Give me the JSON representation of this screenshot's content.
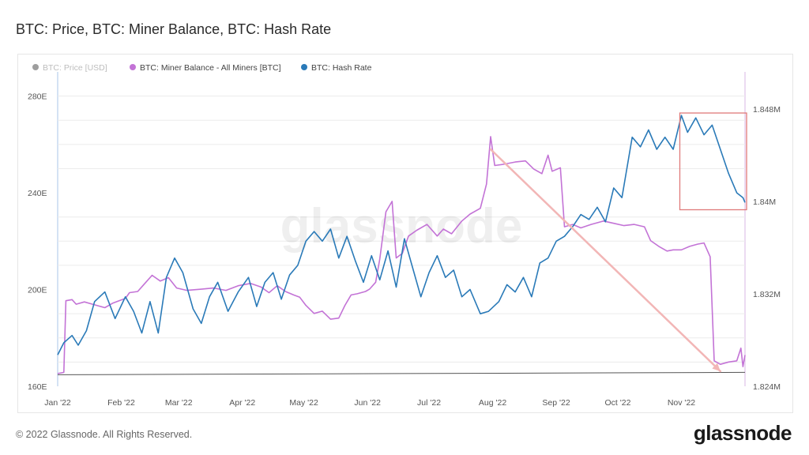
{
  "title": "BTC: Price, BTC: Miner Balance, BTC: Hash Rate",
  "footer": {
    "copyright": "© 2022 Glassnode. All Rights Reserved.",
    "logo": "glassnode"
  },
  "watermark": "glassnode",
  "colors": {
    "price": "#9e9e9e",
    "miner_balance": "#c373d6",
    "hash_rate": "#2a7ab8",
    "price_line": "#555555",
    "highlight_box": "#e07a7a",
    "arrow": "#f2b6b6",
    "grid": "#ececec"
  },
  "chart_data": {
    "type": "line",
    "legend_position": "top-left",
    "grid": true,
    "x_ticks": [
      "Jan '22",
      "Feb '22",
      "Mar '22",
      "Apr '22",
      "May '22",
      "Jun '22",
      "Jul '22",
      "Aug '22",
      "Sep '22",
      "Oct '22",
      "Nov '22"
    ],
    "x_range": [
      "2022-01-01",
      "2022-12-02"
    ],
    "y_left": {
      "label": "",
      "ticks": [
        "160E",
        "200E",
        "240E",
        "280E"
      ],
      "range": [
        160,
        290
      ]
    },
    "y_right": {
      "label": "",
      "ticks": [
        "1.824M",
        "1.832M",
        "1.84M",
        "1.848M"
      ],
      "range": [
        1.824,
        1.8512
      ]
    },
    "series": [
      {
        "name": "BTC: Price [USD]",
        "legend_dimmed": true,
        "points": [
          [
            "2022-01-01",
            1.825
          ],
          [
            "2022-12-02",
            1.8252
          ]
        ]
      },
      {
        "name": "BTC: Miner Balance - All Miners [BTC]",
        "axis": "right",
        "points": [
          [
            "2022-01-01",
            1.8251
          ],
          [
            "2022-01-04",
            1.8252
          ],
          [
            "2022-01-05",
            1.8314
          ],
          [
            "2022-01-08",
            1.8315
          ],
          [
            "2022-01-10",
            1.8311
          ],
          [
            "2022-01-14",
            1.8313
          ],
          [
            "2022-01-18",
            1.8311
          ],
          [
            "2022-01-24",
            1.8308
          ],
          [
            "2022-01-28",
            1.8312
          ],
          [
            "2022-02-03",
            1.8316
          ],
          [
            "2022-02-05",
            1.8321
          ],
          [
            "2022-02-09",
            1.8322
          ],
          [
            "2022-02-12",
            1.8328
          ],
          [
            "2022-02-16",
            1.8336
          ],
          [
            "2022-02-20",
            1.8331
          ],
          [
            "2022-02-24",
            1.8334
          ],
          [
            "2022-02-28",
            1.8325
          ],
          [
            "2022-03-05",
            1.8323
          ],
          [
            "2022-03-12",
            1.8324
          ],
          [
            "2022-03-18",
            1.8325
          ],
          [
            "2022-03-24",
            1.8323
          ],
          [
            "2022-03-30",
            1.8327
          ],
          [
            "2022-04-05",
            1.8329
          ],
          [
            "2022-04-10",
            1.8326
          ],
          [
            "2022-04-14",
            1.8321
          ],
          [
            "2022-04-18",
            1.8327
          ],
          [
            "2022-04-22",
            1.8322
          ],
          [
            "2022-04-26",
            1.8319
          ],
          [
            "2022-04-29",
            1.8317
          ],
          [
            "2022-05-02",
            1.831
          ],
          [
            "2022-05-06",
            1.8303
          ],
          [
            "2022-05-10",
            1.8305
          ],
          [
            "2022-05-14",
            1.8298
          ],
          [
            "2022-05-18",
            1.8299
          ],
          [
            "2022-05-21",
            1.831
          ],
          [
            "2022-05-24",
            1.8319
          ],
          [
            "2022-05-27",
            1.832
          ],
          [
            "2022-05-31",
            1.8322
          ],
          [
            "2022-06-02",
            1.8324
          ],
          [
            "2022-06-05",
            1.833
          ],
          [
            "2022-06-07",
            1.835
          ],
          [
            "2022-06-10",
            1.8391
          ],
          [
            "2022-06-13",
            1.84
          ],
          [
            "2022-06-15",
            1.8351
          ],
          [
            "2022-06-18",
            1.8355
          ],
          [
            "2022-06-21",
            1.837
          ],
          [
            "2022-06-25",
            1.8375
          ],
          [
            "2022-06-30",
            1.838
          ],
          [
            "2022-07-05",
            1.837
          ],
          [
            "2022-07-08",
            1.8376
          ],
          [
            "2022-07-12",
            1.8372
          ],
          [
            "2022-07-17",
            1.8383
          ],
          [
            "2022-07-21",
            1.8389
          ],
          [
            "2022-07-26",
            1.8394
          ],
          [
            "2022-07-29",
            1.8415
          ],
          [
            "2022-07-31",
            1.8456
          ],
          [
            "2022-08-02",
            1.8431
          ],
          [
            "2022-08-06",
            1.8432
          ],
          [
            "2022-08-12",
            1.8434
          ],
          [
            "2022-08-17",
            1.8435
          ],
          [
            "2022-08-21",
            1.8428
          ],
          [
            "2022-08-25",
            1.8424
          ],
          [
            "2022-08-28",
            1.844
          ],
          [
            "2022-08-30",
            1.8426
          ],
          [
            "2022-09-03",
            1.8429
          ],
          [
            "2022-09-05",
            1.8378
          ],
          [
            "2022-09-09",
            1.838
          ],
          [
            "2022-09-13",
            1.8377
          ],
          [
            "2022-09-18",
            1.838
          ],
          [
            "2022-09-24",
            1.8383
          ],
          [
            "2022-09-29",
            1.8381
          ],
          [
            "2022-10-04",
            1.8379
          ],
          [
            "2022-10-09",
            1.838
          ],
          [
            "2022-10-14",
            1.8378
          ],
          [
            "2022-10-17",
            1.8366
          ],
          [
            "2022-10-21",
            1.8361
          ],
          [
            "2022-10-25",
            1.8357
          ],
          [
            "2022-10-28",
            1.8358
          ],
          [
            "2022-11-01",
            1.8358
          ],
          [
            "2022-11-05",
            1.8361
          ],
          [
            "2022-11-09",
            1.8363
          ],
          [
            "2022-11-12",
            1.8364
          ],
          [
            "2022-11-15",
            1.8352
          ],
          [
            "2022-11-17",
            1.8262
          ],
          [
            "2022-11-20",
            1.8259
          ],
          [
            "2022-11-24",
            1.8261
          ],
          [
            "2022-11-28",
            1.8262
          ],
          [
            "2022-11-30",
            1.8273
          ],
          [
            "2022-12-01",
            1.8257
          ],
          [
            "2022-12-02",
            1.8267
          ]
        ]
      },
      {
        "name": "BTC: Hash Rate",
        "axis": "left",
        "points": [
          [
            "2022-01-01",
            173
          ],
          [
            "2022-01-04",
            178
          ],
          [
            "2022-01-08",
            181
          ],
          [
            "2022-01-11",
            177
          ],
          [
            "2022-01-15",
            183
          ],
          [
            "2022-01-19",
            195
          ],
          [
            "2022-01-24",
            199
          ],
          [
            "2022-01-29",
            188
          ],
          [
            "2022-02-03",
            197
          ],
          [
            "2022-02-07",
            191
          ],
          [
            "2022-02-11",
            182
          ],
          [
            "2022-02-15",
            195
          ],
          [
            "2022-02-19",
            182
          ],
          [
            "2022-02-23",
            205
          ],
          [
            "2022-02-27",
            213
          ],
          [
            "2022-03-03",
            207
          ],
          [
            "2022-03-08",
            192
          ],
          [
            "2022-03-12",
            186
          ],
          [
            "2022-03-16",
            197
          ],
          [
            "2022-03-20",
            203
          ],
          [
            "2022-03-25",
            191
          ],
          [
            "2022-03-30",
            199
          ],
          [
            "2022-04-04",
            205
          ],
          [
            "2022-04-08",
            193
          ],
          [
            "2022-04-12",
            203
          ],
          [
            "2022-04-16",
            207
          ],
          [
            "2022-04-20",
            196
          ],
          [
            "2022-04-24",
            206
          ],
          [
            "2022-04-28",
            210
          ],
          [
            "2022-05-02",
            220
          ],
          [
            "2022-05-06",
            224
          ],
          [
            "2022-05-10",
            220
          ],
          [
            "2022-05-14",
            225
          ],
          [
            "2022-05-18",
            213
          ],
          [
            "2022-05-22",
            222
          ],
          [
            "2022-05-26",
            212
          ],
          [
            "2022-05-30",
            203
          ],
          [
            "2022-06-03",
            214
          ],
          [
            "2022-06-07",
            204
          ],
          [
            "2022-06-11",
            216
          ],
          [
            "2022-06-15",
            201
          ],
          [
            "2022-06-19",
            221
          ],
          [
            "2022-06-23",
            209
          ],
          [
            "2022-06-27",
            197
          ],
          [
            "2022-07-01",
            207
          ],
          [
            "2022-07-05",
            214
          ],
          [
            "2022-07-09",
            205
          ],
          [
            "2022-07-13",
            208
          ],
          [
            "2022-07-17",
            197
          ],
          [
            "2022-07-21",
            200
          ],
          [
            "2022-07-26",
            190
          ],
          [
            "2022-07-30",
            191
          ],
          [
            "2022-08-04",
            195
          ],
          [
            "2022-08-08",
            202
          ],
          [
            "2022-08-12",
            199
          ],
          [
            "2022-08-16",
            205
          ],
          [
            "2022-08-20",
            197
          ],
          [
            "2022-08-24",
            211
          ],
          [
            "2022-08-28",
            213
          ],
          [
            "2022-09-01",
            220
          ],
          [
            "2022-09-05",
            222
          ],
          [
            "2022-09-09",
            226
          ],
          [
            "2022-09-13",
            231
          ],
          [
            "2022-09-17",
            229
          ],
          [
            "2022-09-21",
            234
          ],
          [
            "2022-09-25",
            228
          ],
          [
            "2022-09-29",
            242
          ],
          [
            "2022-10-03",
            238
          ],
          [
            "2022-10-08",
            263
          ],
          [
            "2022-10-12",
            259
          ],
          [
            "2022-10-16",
            266
          ],
          [
            "2022-10-20",
            258
          ],
          [
            "2022-10-24",
            263
          ],
          [
            "2022-10-28",
            258
          ],
          [
            "2022-11-01",
            272
          ],
          [
            "2022-11-04",
            265
          ],
          [
            "2022-11-08",
            271
          ],
          [
            "2022-11-12",
            264
          ],
          [
            "2022-11-16",
            268
          ],
          [
            "2022-11-20",
            258
          ],
          [
            "2022-11-24",
            248
          ],
          [
            "2022-11-28",
            240
          ],
          [
            "2022-12-01",
            238
          ],
          [
            "2022-12-02",
            236
          ]
        ]
      }
    ],
    "annotations": [
      {
        "type": "box",
        "x_range": [
          "2022-11-01",
          "2022-12-02"
        ],
        "y_range": [
          233,
          273
        ],
        "axis": "left"
      },
      {
        "type": "arrow",
        "from": [
          "2022-07-31",
          1.8445
        ],
        "to": [
          "2022-11-20",
          1.8253
        ],
        "axis": "right"
      }
    ]
  }
}
